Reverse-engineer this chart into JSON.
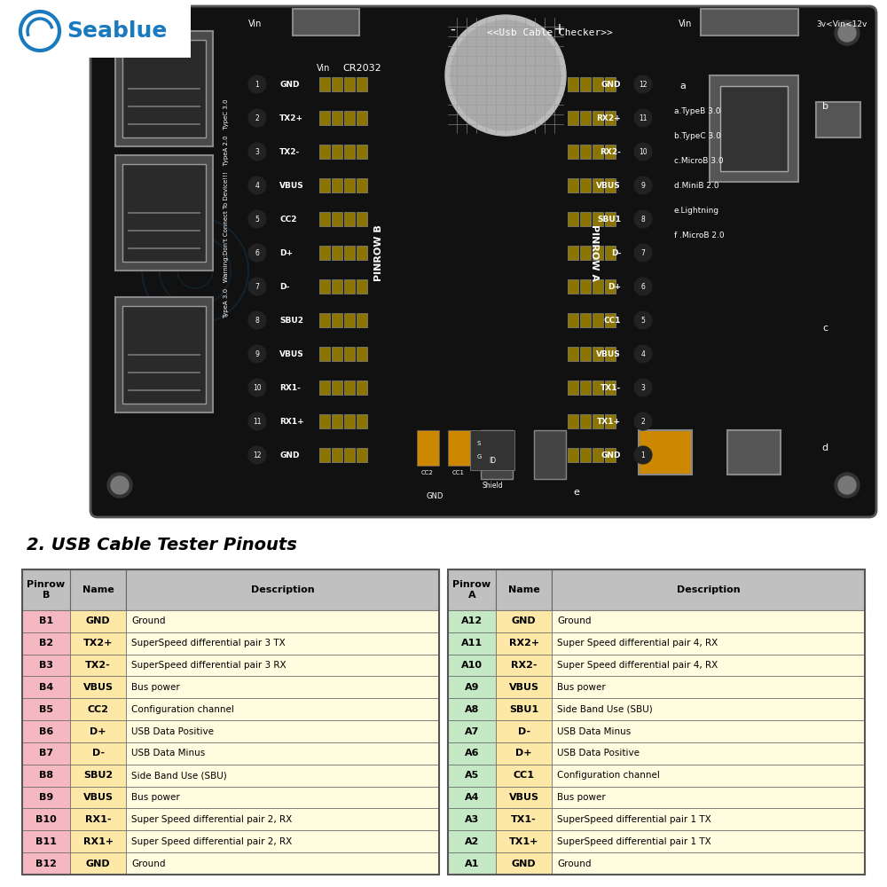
{
  "title": "2. USB Cable Tester Pinouts",
  "bg_color": "#ffffff",
  "pcb_bg": "#111111",
  "seablue_color": "#1a7abf",
  "left_headers": [
    "Pinrow\nB",
    "Name",
    "Description"
  ],
  "right_headers": [
    "Pinrow\nA",
    "Name",
    "Description"
  ],
  "left_rows": [
    [
      "B1",
      "GND",
      "Ground"
    ],
    [
      "B2",
      "TX2+",
      "SuperSpeed differential pair 3 TX"
    ],
    [
      "B3",
      "TX2-",
      "SuperSpeed differential pair 3 RX"
    ],
    [
      "B4",
      "VBUS",
      "Bus power"
    ],
    [
      "B5",
      "CC2",
      "Configuration channel"
    ],
    [
      "B6",
      "D+",
      "USB Data Positive"
    ],
    [
      "B7",
      "D-",
      "USB Data Minus"
    ],
    [
      "B8",
      "SBU2",
      "Side Band Use (SBU)"
    ],
    [
      "B9",
      "VBUS",
      "Bus power"
    ],
    [
      "B10",
      "RX1-",
      "Super Speed differential pair 2, RX"
    ],
    [
      "B11",
      "RX1+",
      "Super Speed differential pair 2, RX"
    ],
    [
      "B12",
      "GND",
      "Ground"
    ]
  ],
  "right_rows": [
    [
      "A12",
      "GND",
      "Ground"
    ],
    [
      "A11",
      "RX2+",
      "Super Speed differential pair 4, RX"
    ],
    [
      "A10",
      "RX2-",
      "Super Speed differential pair 4, RX"
    ],
    [
      "A9",
      "VBUS",
      "Bus power"
    ],
    [
      "A8",
      "SBU1",
      "Side Band Use (SBU)"
    ],
    [
      "A7",
      "D-",
      "USB Data Minus"
    ],
    [
      "A6",
      "D+",
      "USB Data Positive"
    ],
    [
      "A5",
      "CC1",
      "Configuration channel"
    ],
    [
      "A4",
      "VBUS",
      "Bus power"
    ],
    [
      "A3",
      "TX1-",
      "SuperSpeed differential pair 1 TX"
    ],
    [
      "A2",
      "TX1+",
      "SuperSpeed differential pair 1 TX"
    ],
    [
      "A1",
      "GND",
      "Ground"
    ]
  ],
  "pinrow_b_labels": [
    "GND",
    "TX2+",
    "TX2-",
    "VBUS",
    "CC2",
    "D+",
    "D-",
    "SBU2",
    "VBUS",
    "RX1-",
    "RX1+",
    "GND"
  ],
  "pinrow_a_labels": [
    "GND",
    "RX2+",
    "RX2-",
    "VBUS",
    "SBU1",
    "D-",
    "D+",
    "CC1",
    "VBUS",
    "TX1-",
    "TX1+",
    "GND"
  ],
  "pin_numbers_b": [
    "1",
    "2",
    "3",
    "4",
    "5",
    "6",
    "7",
    "8",
    "9",
    "10",
    "11",
    "12"
  ],
  "pin_numbers_a": [
    "12",
    "11",
    "10",
    "9",
    "8",
    "7",
    "6",
    "5",
    "4",
    "3",
    "2",
    "1"
  ],
  "header_color": "#c0c0c0",
  "pinrow_left_color": "#f5b8c0",
  "pinrow_right_color": "#c5e8c5",
  "name_color": "#fde8a8",
  "desc_color": "#fffce0",
  "border_color": "#666666"
}
